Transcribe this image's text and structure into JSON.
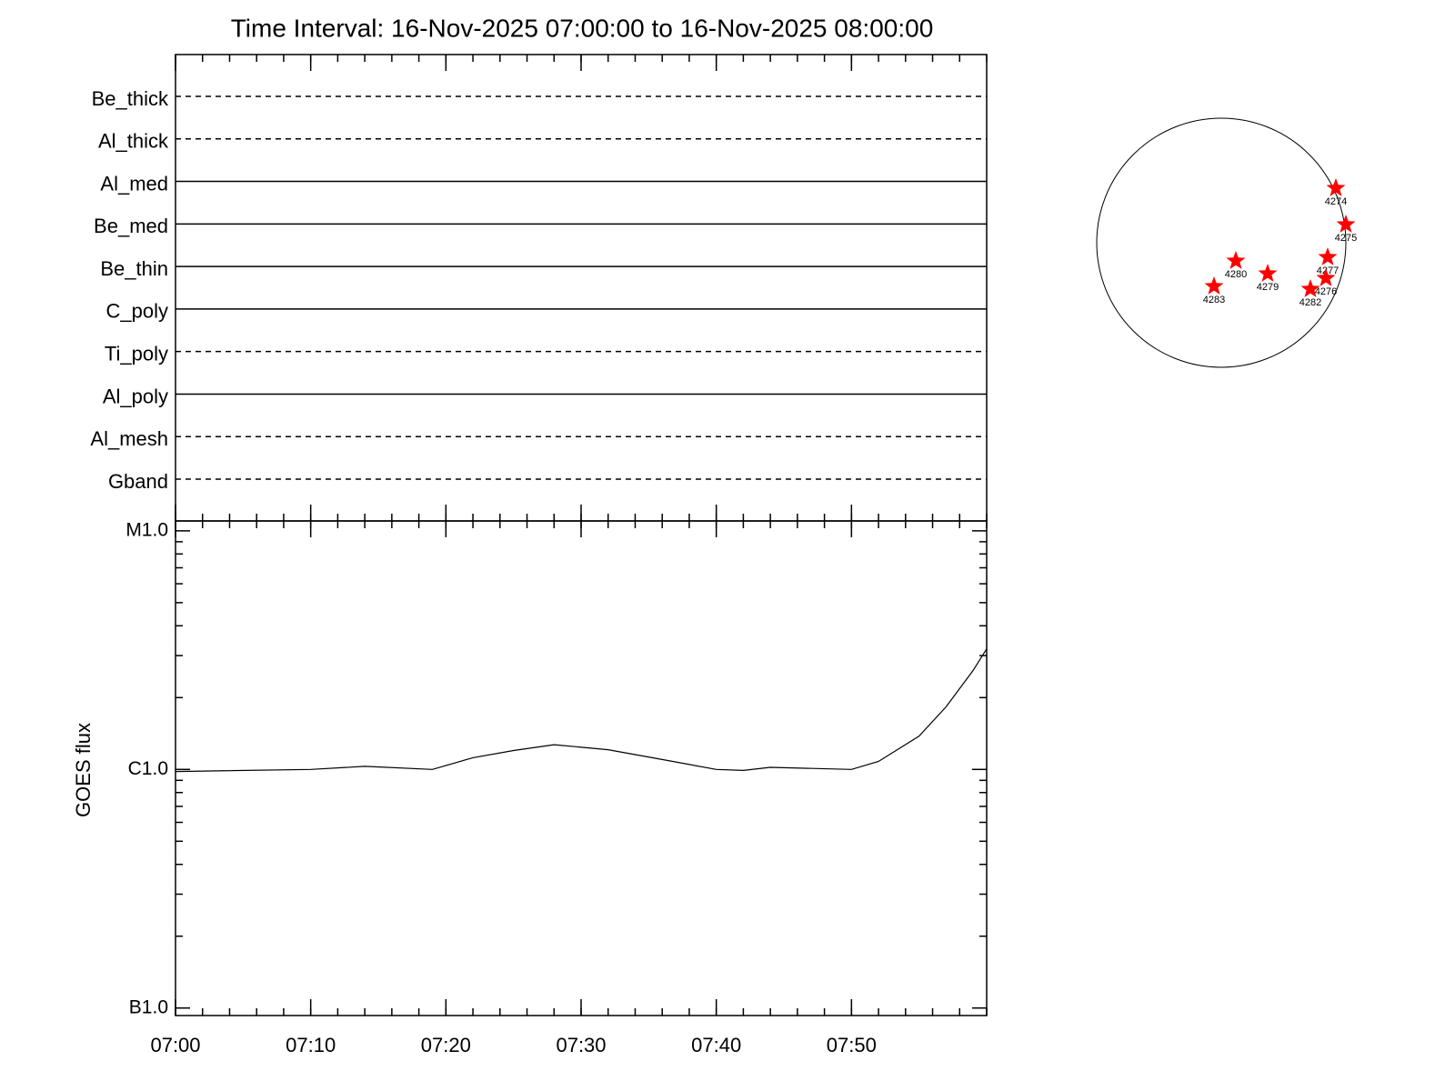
{
  "chart_data": {
    "type": "line",
    "title": "Time Interval: 16-Nov-2025 07:00:00 to 16-Nov-2025 08:00:00",
    "ylabel": "GOES flux",
    "log_scale": true,
    "color": "#000000",
    "x": [
      "07:00",
      "07:10",
      "07:14",
      "07:19",
      "07:22",
      "07:25",
      "07:28",
      "07:32",
      "07:36",
      "07:40",
      "07:42",
      "07:44",
      "07:50",
      "07:52",
      "07:55",
      "07:57",
      "07:59",
      "08:00"
    ],
    "values": [
      9.8e-07,
      1e-06,
      1.03e-06,
      1e-06,
      1.12e-06,
      1.2e-06,
      1.27e-06,
      1.21e-06,
      1.1e-06,
      1e-06,
      9.9e-07,
      1.02e-06,
      1e-06,
      1.08e-06,
      1.38e-06,
      1.83e-06,
      2.6e-06,
      3.2e-06
    ],
    "xlim": [
      "07:00",
      "08:00"
    ],
    "xticks": [
      "07:00",
      "07:10",
      "07:20",
      "07:30",
      "07:40",
      "07:50"
    ],
    "ylim": [
      9.3e-08,
      1.1e-05
    ],
    "yticks": [
      {
        "value": 1e-07,
        "label": "B1.0"
      },
      {
        "value": 1e-06,
        "label": "C1.0"
      },
      {
        "value": 1e-05,
        "label": "M1.0"
      }
    ]
  },
  "filters": [
    {
      "name": "Be_thick",
      "style": "dashed"
    },
    {
      "name": "Al_thick",
      "style": "dashed"
    },
    {
      "name": "Al_med",
      "style": "solid"
    },
    {
      "name": "Be_med",
      "style": "solid"
    },
    {
      "name": "Be_thin",
      "style": "solid"
    },
    {
      "name": "C_poly",
      "style": "solid"
    },
    {
      "name": "Ti_poly",
      "style": "dashed"
    },
    {
      "name": "Al_poly",
      "style": "solid"
    },
    {
      "name": "Al_mesh",
      "style": "dashed"
    },
    {
      "name": "Gband",
      "style": "dashed"
    }
  ],
  "regions": [
    "4274",
    "4275",
    "4277",
    "4280",
    "4279",
    "4276",
    "4282",
    "4283"
  ],
  "region_color": "#ff0000"
}
